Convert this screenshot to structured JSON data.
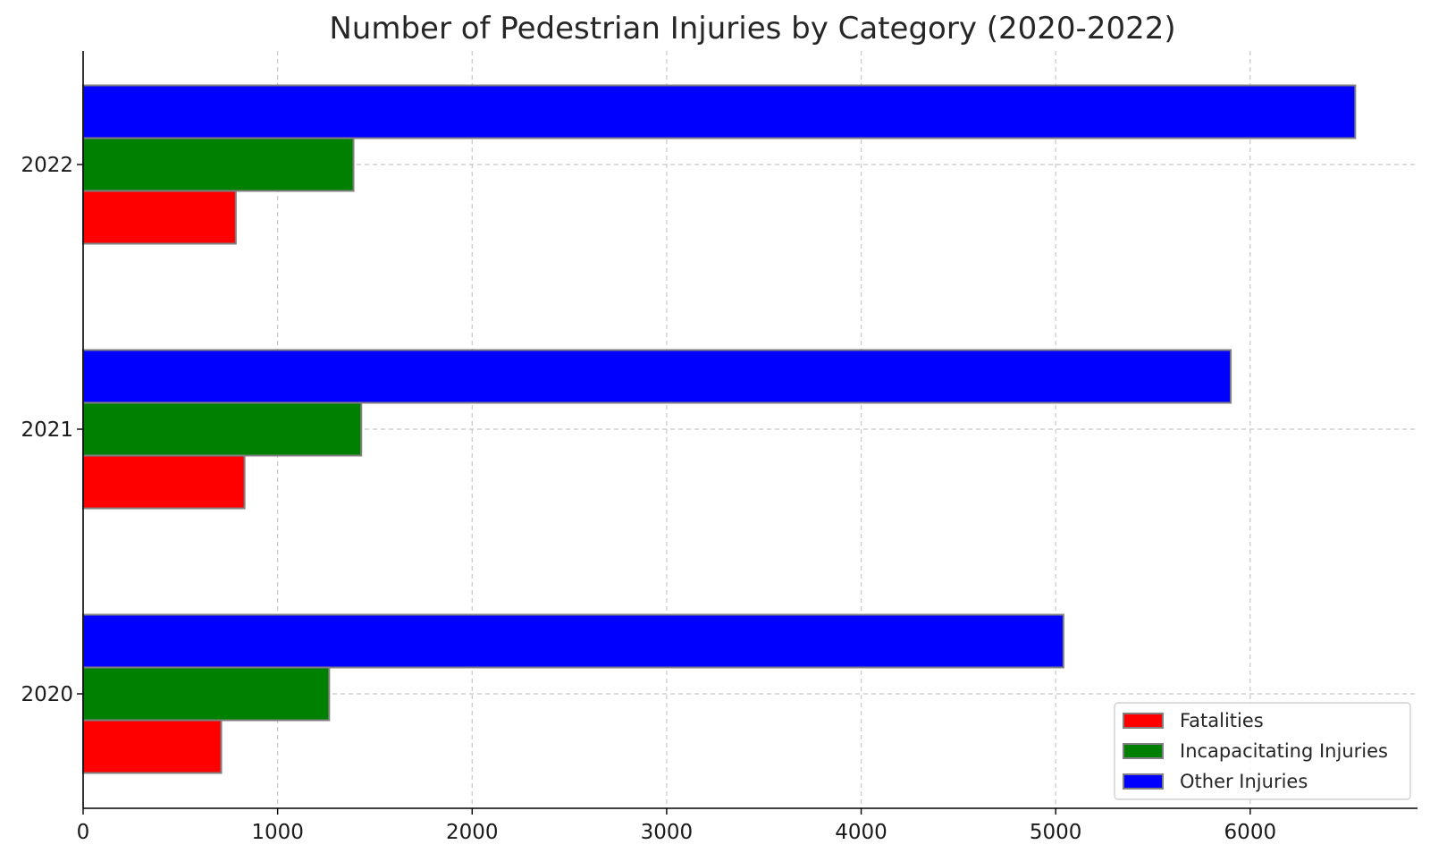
{
  "chart_data": {
    "type": "bar",
    "orientation": "horizontal",
    "title": "Number of Pedestrian Injuries by Category (2020-2022)",
    "xlabel": "",
    "ylabel": "",
    "categories": [
      "2020",
      "2021",
      "2022"
    ],
    "series": [
      {
        "name": "Fatalities",
        "color": "#ff0000",
        "values": [
          710,
          830,
          785
        ]
      },
      {
        "name": "Incapacitating Injuries",
        "color": "#008000",
        "values": [
          1265,
          1430,
          1390
        ]
      },
      {
        "name": "Other Injuries",
        "color": "#0000ff",
        "values": [
          5040,
          5900,
          6540
        ]
      }
    ],
    "xlim": [
      0,
      6860
    ],
    "xticks": [
      "0",
      "1000",
      "2000",
      "3000",
      "4000",
      "5000",
      "6000"
    ],
    "grid": true,
    "legend_position": "lower-right"
  }
}
